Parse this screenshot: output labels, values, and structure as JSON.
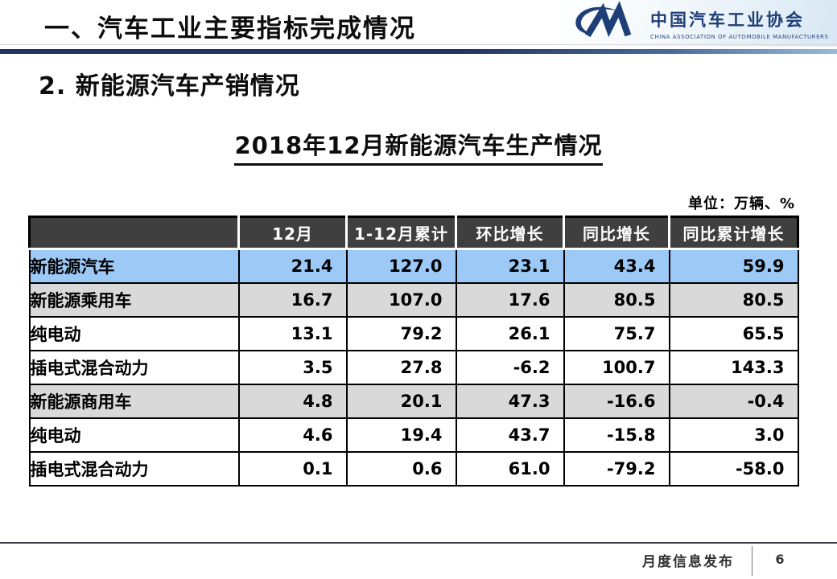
{
  "header": {
    "title": "一、汽车工业主要指标完成情况",
    "logo": {
      "cn_name": "中国汽车工业协会",
      "en_name": "CHINA ASSOCIATION OF AUTOMOBILE MANUFACTURERS"
    }
  },
  "section_title": "2. 新能源汽车产销情况",
  "table_title": "2018年12月新能源汽车生产情况",
  "unit_note": "单位：万辆、%",
  "table": {
    "columns": [
      "",
      "12月",
      "1-12月累计",
      "环比增长",
      "同比增长",
      "同比累计增长"
    ],
    "rows": [
      {
        "label": "新能源汽车",
        "indent": 0,
        "style": "highlight",
        "values": [
          "21.4",
          "127.0",
          "23.1",
          "43.4",
          "59.9"
        ]
      },
      {
        "label": "新能源乘用车",
        "indent": 1,
        "style": "gray",
        "values": [
          "16.7",
          "107.0",
          "17.6",
          "80.5",
          "80.5"
        ]
      },
      {
        "label": "纯电动",
        "indent": 2,
        "style": "white",
        "values": [
          "13.1",
          "79.2",
          "26.1",
          "75.7",
          "65.5"
        ]
      },
      {
        "label": "插电式混合动力",
        "indent": 2,
        "style": "white",
        "values": [
          "3.5",
          "27.8",
          "-6.2",
          "100.7",
          "143.3"
        ]
      },
      {
        "label": "新能源商用车",
        "indent": 1,
        "style": "gray",
        "values": [
          "4.8",
          "20.1",
          "47.3",
          "-16.6",
          "-0.4"
        ]
      },
      {
        "label": "纯电动",
        "indent": 2,
        "style": "white",
        "values": [
          "4.6",
          "19.4",
          "43.7",
          "-15.8",
          "3.0"
        ]
      },
      {
        "label": "插电式混合动力",
        "indent": 2,
        "style": "white",
        "values": [
          "0.1",
          "0.6",
          "61.0",
          "-79.2",
          "-58.0"
        ]
      }
    ]
  },
  "footer": {
    "label": "月度信息发布",
    "page": "6"
  },
  "colors": {
    "highlight_row": "#9DC9F7",
    "gray_row": "#D9D9D9",
    "white_row": "#FFFFFF",
    "table_header_bg": "#3F3F3F",
    "accent_navy": "#24345E",
    "logo_navy": "#1D3E76"
  }
}
